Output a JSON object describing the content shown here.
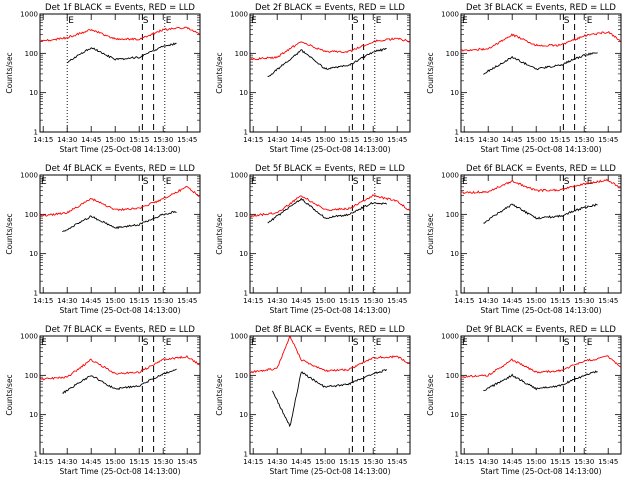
{
  "figure": {
    "xlabel": "Start Time (25-Oct-08 14:13:00)",
    "ylabel": "Counts/sec",
    "colors": {
      "events": "#000000",
      "lld": "#ff0000"
    }
  },
  "chart_data": [
    {
      "type": "line",
      "title": "Det 1f BLACK = Events, RED = LLD",
      "xlim": [
        "14:13",
        "15:53"
      ],
      "ylim": [
        1,
        1000
      ],
      "yscale": "log",
      "xticks": [
        "14:15",
        "14:30",
        "14:45",
        "15:00",
        "15:15",
        "15:30",
        "15:45"
      ],
      "yticks": [
        "1",
        "10",
        "100",
        "1000"
      ],
      "markers": {
        "E1": "14:30",
        "S": "15:19",
        "E2": "15:31"
      },
      "dashed": [
        "15:17",
        "15:24"
      ],
      "series": [
        {
          "values": {
            "x": [
              "14:13",
              "14:30",
              "14:45",
              "15:00",
              "15:15",
              "15:30",
              "15:45",
              "15:53"
            ],
            "y": [
              200,
              250,
              400,
              230,
              230,
              400,
              450,
              300
            ]
          }
        },
        {
          "values": {
            "x": [
              "14:30",
              "14:45",
              "15:00",
              "15:15",
              "15:30",
              "15:39"
            ],
            "y": [
              60,
              140,
              70,
              80,
              150,
              180
            ]
          }
        }
      ]
    },
    {
      "type": "line",
      "title": "Det 2f BLACK = Events, RED = LLD",
      "xlim": [
        "14:13",
        "15:53"
      ],
      "ylim": [
        1,
        1000
      ],
      "yscale": "log",
      "xticks": [
        "14:15",
        "14:30",
        "14:45",
        "15:00",
        "15:15",
        "15:30",
        "15:45"
      ],
      "yticks": [
        "1",
        "10",
        "100",
        "1000"
      ],
      "markers": {
        "E1": "14:13",
        "S": "15:19",
        "E2": "15:31"
      },
      "dashed": [
        "15:17",
        "15:24"
      ],
      "series": [
        {
          "values": {
            "x": [
              "14:13",
              "14:30",
              "14:45",
              "15:00",
              "15:15",
              "15:30",
              "15:45",
              "15:53"
            ],
            "y": [
              70,
              80,
              200,
              110,
              110,
              200,
              240,
              200
            ]
          }
        },
        {
          "values": {
            "x": [
              "14:24",
              "14:45",
              "15:00",
              "15:15",
              "15:30",
              "15:39"
            ],
            "y": [
              25,
              120,
              40,
              50,
              110,
              130
            ]
          }
        }
      ]
    },
    {
      "type": "line",
      "title": "Det 3f BLACK = Events, RED = LLD",
      "xlim": [
        "14:13",
        "15:53"
      ],
      "ylim": [
        1,
        1000
      ],
      "yscale": "log",
      "xticks": [
        "14:15",
        "14:30",
        "14:45",
        "15:00",
        "15:15",
        "15:30",
        "15:45"
      ],
      "yticks": [
        "1",
        "10",
        "100",
        "1000"
      ],
      "markers": {
        "E1": "14:13",
        "S": "15:19",
        "E2": "15:31"
      },
      "dashed": [
        "15:17",
        "15:24"
      ],
      "series": [
        {
          "values": {
            "x": [
              "14:13",
              "14:30",
              "14:45",
              "15:00",
              "15:15",
              "15:30",
              "15:45",
              "15:53"
            ],
            "y": [
              120,
              130,
              300,
              160,
              160,
              280,
              350,
              200
            ]
          }
        },
        {
          "values": {
            "x": [
              "14:27",
              "14:45",
              "15:00",
              "15:15",
              "15:30",
              "15:39"
            ],
            "y": [
              30,
              80,
              40,
              50,
              90,
              110
            ]
          }
        }
      ]
    },
    {
      "type": "line",
      "title": "Det 4f BLACK = Events, RED = LLD",
      "xlim": [
        "14:13",
        "15:53"
      ],
      "ylim": [
        1,
        1000
      ],
      "yscale": "log",
      "xticks": [
        "14:15",
        "14:30",
        "14:45",
        "15:00",
        "15:15",
        "15:30",
        "15:45"
      ],
      "yticks": [
        "1",
        "10",
        "100",
        "1000"
      ],
      "markers": {
        "E1": "14:13",
        "S": "15:19",
        "E2": "15:31"
      },
      "dashed": [
        "15:17",
        "15:24"
      ],
      "series": [
        {
          "values": {
            "x": [
              "14:13",
              "14:30",
              "14:45",
              "15:00",
              "15:15",
              "15:30",
              "15:45",
              "15:53"
            ],
            "y": [
              90,
              110,
              250,
              130,
              140,
              250,
              500,
              280
            ]
          }
        },
        {
          "values": {
            "x": [
              "14:27",
              "14:45",
              "15:00",
              "15:15",
              "15:30",
              "15:39"
            ],
            "y": [
              35,
              90,
              45,
              55,
              100,
              120
            ]
          }
        }
      ]
    },
    {
      "type": "line",
      "title": "Det 5f BLACK = Events, RED = LLD",
      "xlim": [
        "14:13",
        "15:53"
      ],
      "ylim": [
        1,
        1000
      ],
      "yscale": "log",
      "xticks": [
        "14:15",
        "14:30",
        "14:45",
        "15:00",
        "15:15",
        "15:30",
        "15:45"
      ],
      "yticks": [
        "1",
        "10",
        "100",
        "1000"
      ],
      "markers": {
        "E1": "14:13",
        "S": "15:19",
        "E2": "15:31"
      },
      "dashed": [
        "15:17",
        "15:24"
      ],
      "series": [
        {
          "values": {
            "x": [
              "14:13",
              "14:30",
              "14:45",
              "15:00",
              "15:15",
              "15:30",
              "15:45",
              "15:53"
            ],
            "y": [
              90,
              110,
              300,
              130,
              140,
              300,
              220,
              120
            ]
          }
        },
        {
          "values": {
            "x": [
              "14:24",
              "14:45",
              "15:00",
              "15:15",
              "15:30",
              "15:39"
            ],
            "y": [
              60,
              250,
              80,
              100,
              200,
              180
            ]
          }
        }
      ]
    },
    {
      "type": "line",
      "title": "Det 6f BLACK = Events, RED = LLD",
      "xlim": [
        "14:13",
        "15:53"
      ],
      "ylim": [
        1,
        1000
      ],
      "yscale": "log",
      "xticks": [
        "14:15",
        "14:30",
        "14:45",
        "15:00",
        "15:15",
        "15:30",
        "15:45"
      ],
      "yticks": [
        "1",
        "10",
        "100",
        "1000"
      ],
      "markers": {
        "E1": "14:13",
        "S": "15:19",
        "E2": "15:31"
      },
      "dashed": [
        "15:17",
        "15:24"
      ],
      "series": [
        {
          "values": {
            "x": [
              "14:13",
              "14:30",
              "14:45",
              "15:00",
              "15:15",
              "15:30",
              "15:45",
              "15:53"
            ],
            "y": [
              350,
              380,
              700,
              400,
              420,
              600,
              750,
              450
            ]
          }
        },
        {
          "values": {
            "x": [
              "14:27",
              "14:45",
              "15:00",
              "15:15",
              "15:30",
              "15:39"
            ],
            "y": [
              60,
              180,
              80,
              90,
              150,
              180
            ]
          }
        }
      ]
    },
    {
      "type": "line",
      "title": "Det 7f BLACK = Events, RED = LLD",
      "xlim": [
        "14:13",
        "15:53"
      ],
      "ylim": [
        1,
        1000
      ],
      "yscale": "log",
      "xticks": [
        "14:15",
        "14:30",
        "14:45",
        "15:00",
        "15:15",
        "15:30",
        "15:45"
      ],
      "yticks": [
        "1",
        "10",
        "100",
        "1000"
      ],
      "markers": {
        "E1": "14:13",
        "S": "15:19",
        "E2": "15:31"
      },
      "dashed": [
        "15:17",
        "15:24"
      ],
      "series": [
        {
          "values": {
            "x": [
              "14:13",
              "14:30",
              "14:45",
              "15:00",
              "15:15",
              "15:30",
              "15:45",
              "15:53"
            ],
            "y": [
              80,
              90,
              250,
              110,
              120,
              250,
              300,
              180
            ]
          }
        },
        {
          "values": {
            "x": [
              "14:27",
              "14:45",
              "15:00",
              "15:15",
              "15:30",
              "15:39"
            ],
            "y": [
              35,
              100,
              45,
              55,
              110,
              140
            ]
          }
        }
      ]
    },
    {
      "type": "line",
      "title": "Det 8f BLACK = Events, RED = LLD",
      "xlim": [
        "14:13",
        "15:53"
      ],
      "ylim": [
        1,
        1000
      ],
      "yscale": "log",
      "xticks": [
        "14:15",
        "14:30",
        "14:45",
        "15:00",
        "15:15",
        "15:30",
        "15:45"
      ],
      "yticks": [
        "1",
        "10",
        "100",
        "1000"
      ],
      "markers": {
        "E1": "14:13",
        "S": "15:19",
        "E2": "15:31"
      },
      "dashed": [
        "15:17",
        "15:24"
      ],
      "series": [
        {
          "values": {
            "x": [
              "14:13",
              "14:30",
              "14:38",
              "14:45",
              "15:00",
              "15:15",
              "15:30",
              "15:45",
              "15:53"
            ],
            "y": [
              120,
              150,
              1000,
              250,
              130,
              140,
              280,
              300,
              200
            ]
          }
        },
        {
          "values": {
            "x": [
              "14:27",
              "14:38",
              "14:45",
              "15:00",
              "15:15",
              "15:30",
              "15:39"
            ],
            "y": [
              40,
              5,
              120,
              50,
              60,
              110,
              140
            ]
          }
        }
      ]
    },
    {
      "type": "line",
      "title": "Det 9f BLACK = Events, RED = LLD",
      "xlim": [
        "14:13",
        "15:53"
      ],
      "ylim": [
        1,
        1000
      ],
      "yscale": "log",
      "xticks": [
        "14:15",
        "14:30",
        "14:45",
        "15:00",
        "15:15",
        "15:30",
        "15:45"
      ],
      "yticks": [
        "1",
        "10",
        "100",
        "1000"
      ],
      "markers": {
        "E1": "14:13",
        "S": "15:19",
        "E2": "15:31"
      },
      "dashed": [
        "15:17",
        "15:24"
      ],
      "series": [
        {
          "values": {
            "x": [
              "14:13",
              "14:30",
              "14:45",
              "15:00",
              "15:15",
              "15:30",
              "15:45",
              "15:53"
            ],
            "y": [
              90,
              100,
              250,
              120,
              130,
              230,
              300,
              160
            ]
          }
        },
        {
          "values": {
            "x": [
              "14:27",
              "14:45",
              "15:00",
              "15:15",
              "15:30",
              "15:39"
            ],
            "y": [
              40,
              100,
              45,
              55,
              100,
              130
            ]
          }
        }
      ]
    }
  ]
}
